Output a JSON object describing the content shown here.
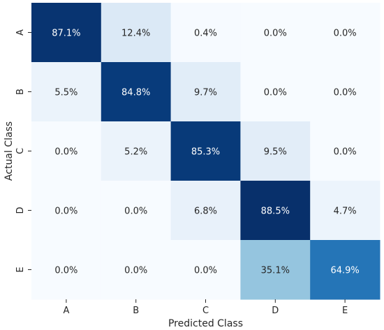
{
  "chart_data": {
    "type": "heatmap",
    "title": "",
    "xlabel": "Predicted Class",
    "ylabel": "Actual Class",
    "x_categories": [
      "A",
      "B",
      "C",
      "D",
      "E"
    ],
    "y_categories": [
      "A",
      "B",
      "C",
      "D",
      "E"
    ],
    "values": [
      [
        87.1,
        12.4,
        0.4,
        0.0,
        0.0
      ],
      [
        5.5,
        84.8,
        9.7,
        0.0,
        0.0
      ],
      [
        0.0,
        5.2,
        85.3,
        9.5,
        0.0
      ],
      [
        0.0,
        0.0,
        6.8,
        88.5,
        4.7
      ],
      [
        0.0,
        0.0,
        0.0,
        35.1,
        64.9
      ]
    ],
    "value_labels": [
      [
        "87.1%",
        "12.4%",
        "0.4%",
        "0.0%",
        "0.0%"
      ],
      [
        "5.5%",
        "84.8%",
        "9.7%",
        "0.0%",
        "0.0%"
      ],
      [
        "0.0%",
        "5.2%",
        "85.3%",
        "9.5%",
        "0.0%"
      ],
      [
        "0.0%",
        "0.0%",
        "6.8%",
        "88.5%",
        "4.7%"
      ],
      [
        "0.0%",
        "0.0%",
        "0.0%",
        "35.1%",
        "64.9%"
      ]
    ],
    "colormap": "Blues",
    "vmin": 0,
    "vmax": 88.5,
    "colorbar": false,
    "grid": false
  }
}
